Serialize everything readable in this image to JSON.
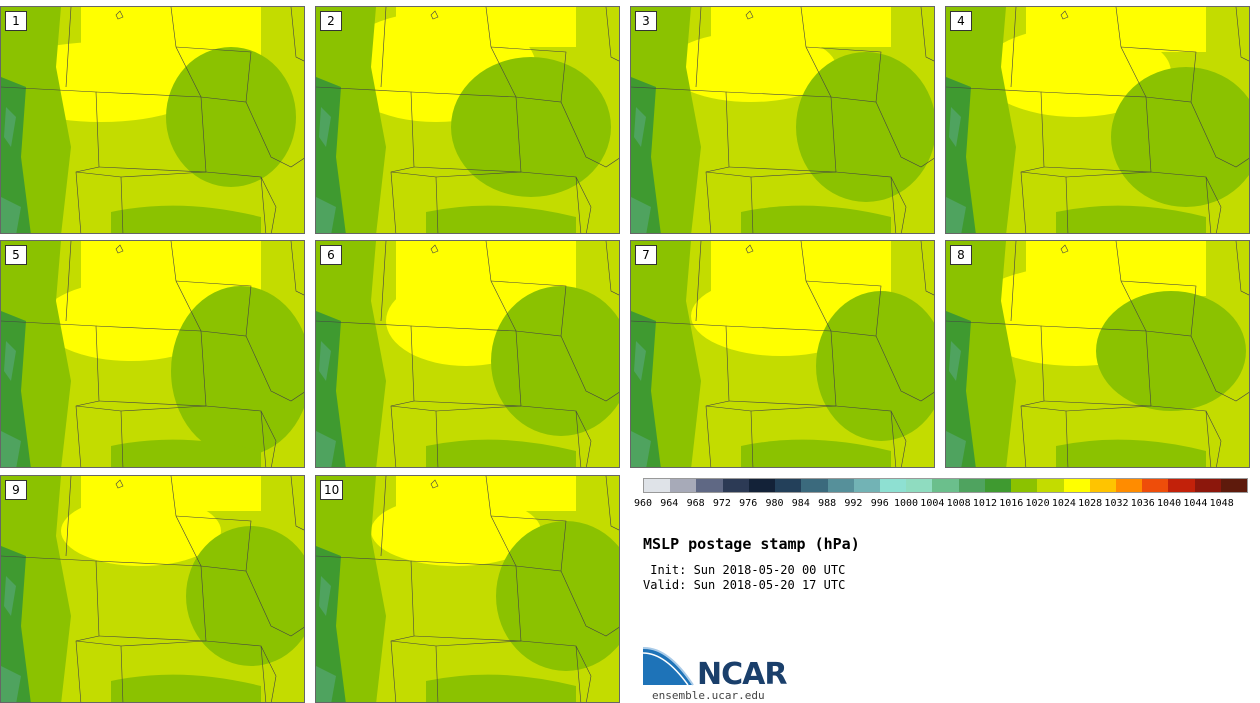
{
  "panels": [
    {
      "label": "1"
    },
    {
      "label": "2"
    },
    {
      "label": "3"
    },
    {
      "label": "4"
    },
    {
      "label": "5"
    },
    {
      "label": "6"
    },
    {
      "label": "7"
    },
    {
      "label": "8"
    },
    {
      "label": "9"
    },
    {
      "label": "10"
    }
  ],
  "colorbar": {
    "colors": [
      "#dfe3e8",
      "#a7aab8",
      "#5f6884",
      "#2c3a55",
      "#132238",
      "#23405a",
      "#3b6a7d",
      "#56909a",
      "#72b3b5",
      "#8ee0d2",
      "#8fdcc0",
      "#6bbf8c",
      "#4fa35f",
      "#3f9a30",
      "#8bc200",
      "#c3dc00",
      "#ffff00",
      "#ffc400",
      "#ff8c00",
      "#ee4d0a",
      "#c2210a",
      "#8c170c",
      "#5e1a0c"
    ],
    "labels": [
      "960",
      "964",
      "968",
      "972",
      "976",
      "980",
      "984",
      "988",
      "992",
      "996",
      "1000",
      "1004",
      "1008",
      "1012",
      "1016",
      "1020",
      "1024",
      "1028",
      "1032",
      "1036",
      "1040",
      "1044",
      "1048"
    ]
  },
  "title": "MSLP postage stamp (hPa)",
  "init": " Init: Sun 2018-05-20 00 UTC",
  "valid": "Valid: Sun 2018-05-20 17 UTC",
  "logo_text": "NCAR",
  "website": "ensemble.ucar.edu"
}
